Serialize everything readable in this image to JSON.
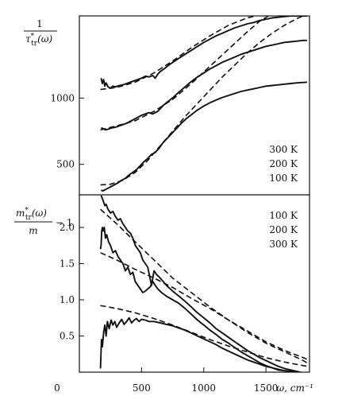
{
  "chart_data": [
    {
      "type": "line",
      "panel": "top",
      "ylabel_num": "1",
      "ylabel_den": "τ*tr(ω)",
      "ylabel_den_main": "τ",
      "ylabel_den_sup": "*",
      "ylabel_den_sub": "tr",
      "ylabel_den_arg": "(ω)",
      "xlim": [
        0,
        1850
      ],
      "ylim": [
        270,
        1620
      ],
      "yticks": [
        500,
        1000
      ],
      "ytick_labels": [
        "500",
        "1000"
      ],
      "legend": [
        "300 K",
        "200 K",
        "100 K"
      ],
      "legend_position": "bottom-right",
      "series": [
        {
          "style": "solid",
          "x": [
            175,
            185,
            195,
            205,
            215,
            230,
            250,
            270,
            290,
            320,
            350,
            380,
            410,
            440,
            470,
            500,
            530,
            560,
            590,
            610,
            630,
            650,
            680,
            720,
            760,
            800,
            850,
            900,
            950,
            1000,
            1050,
            1100,
            1150,
            1200,
            1250,
            1300,
            1350,
            1400,
            1450,
            1500,
            1550,
            1600,
            1650,
            1700,
            1750,
            1800,
            1830
          ],
          "y": [
            1150,
            1110,
            1140,
            1090,
            1115,
            1085,
            1075,
            1090,
            1085,
            1095,
            1100,
            1110,
            1120,
            1130,
            1140,
            1150,
            1165,
            1160,
            1170,
            1150,
            1180,
            1200,
            1220,
            1250,
            1275,
            1300,
            1330,
            1360,
            1390,
            1420,
            1445,
            1470,
            1490,
            1510,
            1530,
            1545,
            1560,
            1570,
            1585,
            1595,
            1605,
            1610,
            1615,
            1620,
            1620,
            1620,
            1620
          ]
        },
        {
          "style": "dashed",
          "x": [
            170,
            300,
            450,
            600,
            750,
            900,
            1050,
            1200,
            1350,
            1420
          ],
          "y": [
            1065,
            1080,
            1120,
            1190,
            1280,
            1380,
            1470,
            1550,
            1605,
            1620
          ]
        },
        {
          "style": "solid",
          "x": [
            175,
            190,
            210,
            230,
            260,
            290,
            320,
            350,
            380,
            410,
            440,
            470,
            500,
            530,
            560,
            590,
            610,
            630,
            650,
            680,
            720,
            760,
            800,
            850,
            900,
            950,
            1000,
            1050,
            1100,
            1150,
            1200,
            1250,
            1300,
            1350,
            1400,
            1450,
            1500,
            1550,
            1600,
            1650,
            1700,
            1750,
            1800,
            1830
          ],
          "y": [
            775,
            770,
            760,
            765,
            775,
            780,
            790,
            800,
            810,
            825,
            840,
            855,
            870,
            880,
            890,
            880,
            890,
            900,
            920,
            950,
            980,
            1010,
            1045,
            1085,
            1125,
            1160,
            1190,
            1220,
            1245,
            1270,
            1290,
            1310,
            1330,
            1345,
            1360,
            1375,
            1390,
            1400,
            1410,
            1420,
            1425,
            1430,
            1435,
            1435
          ]
        },
        {
          "style": "dashed",
          "x": [
            170,
            300,
            450,
            600,
            750,
            900,
            1050,
            1200,
            1350,
            1450,
            1520
          ],
          "y": [
            760,
            790,
            830,
            900,
            990,
            1110,
            1240,
            1370,
            1500,
            1580,
            1620
          ]
        },
        {
          "style": "solid",
          "x": [
            175,
            190,
            210,
            230,
            250,
            280,
            310,
            340,
            370,
            400,
            430,
            460,
            490,
            520,
            550,
            580,
            610,
            640,
            670,
            700,
            740,
            780,
            820,
            860,
            900,
            950,
            1000,
            1050,
            1100,
            1150,
            1200,
            1250,
            1300,
            1350,
            1400,
            1450,
            1500,
            1550,
            1600,
            1650,
            1700,
            1750,
            1800,
            1830
          ],
          "y": [
            305,
            300,
            310,
            320,
            330,
            345,
            360,
            380,
            395,
            420,
            440,
            460,
            490,
            520,
            545,
            575,
            590,
            620,
            660,
            690,
            730,
            770,
            810,
            845,
            875,
            910,
            940,
            965,
            985,
            1005,
            1020,
            1035,
            1050,
            1060,
            1070,
            1080,
            1090,
            1095,
            1100,
            1105,
            1110,
            1115,
            1118,
            1120
          ]
        },
        {
          "style": "dashed",
          "x": [
            170,
            250,
            350,
            450,
            550,
            650,
            750,
            850,
            950,
            1050,
            1150,
            1250,
            1350,
            1450,
            1550,
            1650,
            1750,
            1800
          ],
          "y": [
            345,
            350,
            380,
            440,
            530,
            640,
            750,
            860,
            960,
            1060,
            1160,
            1250,
            1340,
            1420,
            1490,
            1550,
            1600,
            1620
          ]
        }
      ]
    },
    {
      "type": "line",
      "panel": "bottom",
      "ylabel_num": "m*tr(ω)",
      "ylabel_num_main": "m",
      "ylabel_num_sup": "*",
      "ylabel_num_sub": "tr",
      "ylabel_num_arg": "(ω)",
      "ylabel_den": "m",
      "ylabel_tail": "− 1",
      "xlabel": "ω, cm⁻¹",
      "xlim": [
        0,
        1850
      ],
      "ylim": [
        0,
        2.45
      ],
      "xticks": [
        0,
        500,
        1000,
        1500
      ],
      "xtick_labels": [
        "0",
        "500",
        "1000",
        "1500"
      ],
      "yticks": [
        0.5,
        1.0,
        1.5,
        2.0
      ],
      "ytick_labels": [
        "0.5",
        "1.0",
        "1.5",
        "2.0"
      ],
      "legend": [
        "100 K",
        "200 K",
        "300 K"
      ],
      "legend_position": "top-right",
      "series": [
        {
          "style": "solid",
          "x": [
            175,
            185,
            195,
            205,
            215,
            230,
            250,
            270,
            290,
            310,
            330,
            350,
            370,
            390,
            410,
            430,
            450,
            470,
            490,
            510,
            530,
            550,
            580,
            600,
            620,
            650,
            700,
            750,
            800,
            850,
            900,
            950,
            1000,
            1050,
            1100,
            1150,
            1200,
            1250,
            1300,
            1350,
            1400,
            1450,
            1500,
            1550,
            1600,
            1650,
            1700,
            1750,
            1780
          ],
          "y": [
            2.44,
            2.4,
            2.35,
            2.3,
            2.32,
            2.25,
            2.2,
            2.22,
            2.15,
            2.1,
            2.12,
            2.05,
            2.0,
            1.95,
            1.92,
            1.85,
            1.75,
            1.7,
            1.65,
            1.55,
            1.5,
            1.45,
            1.2,
            1.4,
            1.35,
            1.3,
            1.2,
            1.12,
            1.05,
            0.98,
            0.9,
            0.82,
            0.75,
            0.68,
            0.6,
            0.54,
            0.48,
            0.42,
            0.36,
            0.3,
            0.25,
            0.2,
            0.16,
            0.12,
            0.08,
            0.05,
            0.03,
            0.01,
            0.0
          ]
        },
        {
          "style": "dashed",
          "x": [
            170,
            300,
            450,
            600,
            750,
            900,
            1050,
            1200,
            1350,
            1500,
            1650,
            1800,
            1840
          ],
          "y": [
            2.25,
            2.05,
            1.8,
            1.55,
            1.3,
            1.1,
            0.9,
            0.72,
            0.55,
            0.4,
            0.28,
            0.16,
            0.12
          ]
        },
        {
          "style": "solid",
          "x": [
            170,
            175,
            180,
            185,
            190,
            200,
            210,
            220,
            235,
            250,
            270,
            290,
            310,
            330,
            350,
            370,
            390,
            410,
            430,
            450,
            470,
            490,
            510,
            530,
            550,
            570,
            590,
            610,
            630,
            660,
            700,
            750,
            800,
            850,
            900,
            950,
            1000,
            1050,
            1100,
            1150,
            1200,
            1250,
            1300,
            1350,
            1400,
            1450,
            1500,
            1550,
            1600,
            1650,
            1700,
            1740
          ],
          "y": [
            1.7,
            1.75,
            1.95,
            2.0,
            1.95,
            2.0,
            1.85,
            1.9,
            1.8,
            1.75,
            1.65,
            1.68,
            1.6,
            1.55,
            1.5,
            1.4,
            1.45,
            1.35,
            1.38,
            1.25,
            1.2,
            1.15,
            1.1,
            1.12,
            1.15,
            1.18,
            1.25,
            1.2,
            1.15,
            1.1,
            1.05,
            1.0,
            0.95,
            0.88,
            0.8,
            0.72,
            0.65,
            0.58,
            0.52,
            0.45,
            0.4,
            0.34,
            0.28,
            0.23,
            0.18,
            0.13,
            0.09,
            0.06,
            0.03,
            0.02,
            0.01,
            0.0
          ]
        },
        {
          "style": "dashed",
          "x": [
            170,
            300,
            450,
            600,
            750,
            900,
            1050,
            1200,
            1350,
            1500,
            1650,
            1800,
            1840
          ],
          "y": [
            1.65,
            1.55,
            1.42,
            1.3,
            1.17,
            1.02,
            0.88,
            0.72,
            0.57,
            0.42,
            0.3,
            0.2,
            0.17
          ]
        },
        {
          "style": "solid",
          "x": [
            170,
            178,
            185,
            195,
            205,
            215,
            225,
            240,
            255,
            270,
            285,
            300,
            320,
            340,
            360,
            380,
            400,
            420,
            440,
            460,
            480,
            500,
            530,
            560,
            600,
            650,
            700,
            750,
            800,
            850,
            900,
            950,
            1000,
            1050,
            1100,
            1150,
            1200,
            1250,
            1300,
            1350,
            1400,
            1450,
            1500,
            1550,
            1600,
            1650,
            1700,
            1730
          ],
          "y": [
            0.05,
            0.45,
            0.35,
            0.55,
            0.65,
            0.5,
            0.7,
            0.6,
            0.72,
            0.65,
            0.7,
            0.62,
            0.68,
            0.73,
            0.66,
            0.7,
            0.75,
            0.68,
            0.72,
            0.74,
            0.7,
            0.73,
            0.72,
            0.7,
            0.7,
            0.68,
            0.66,
            0.64,
            0.61,
            0.58,
            0.54,
            0.5,
            0.46,
            0.42,
            0.38,
            0.33,
            0.29,
            0.25,
            0.21,
            0.17,
            0.14,
            0.11,
            0.08,
            0.06,
            0.04,
            0.02,
            0.01,
            0.0
          ]
        },
        {
          "style": "dashed",
          "x": [
            170,
            300,
            450,
            600,
            750,
            900,
            1050,
            1200,
            1350,
            1500,
            1650,
            1800,
            1840
          ],
          "y": [
            0.92,
            0.88,
            0.82,
            0.74,
            0.65,
            0.55,
            0.45,
            0.36,
            0.28,
            0.2,
            0.14,
            0.09,
            0.08
          ]
        }
      ]
    }
  ]
}
